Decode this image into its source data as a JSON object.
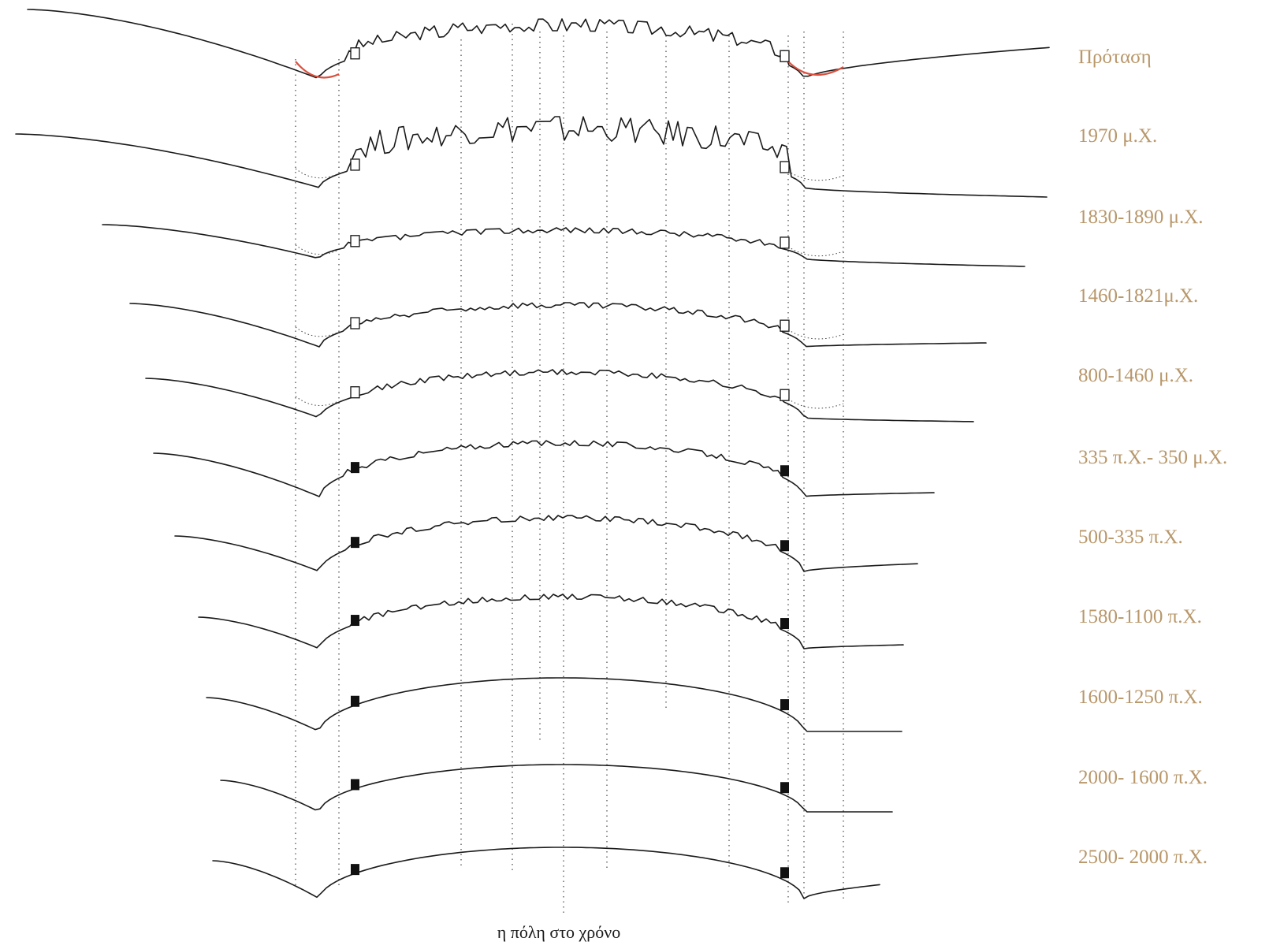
{
  "colors": {
    "label": "#b8976a",
    "highlight": "#d9503f",
    "ink": "#1a1a1a"
  },
  "periods": [
    {
      "label": "Πρόταση",
      "variant": "proposal"
    },
    {
      "label": "1970 μ.Χ.",
      "variant": "modern"
    },
    {
      "label": "1830-1890 μ.Χ.",
      "variant": "outline-gates"
    },
    {
      "label": "1460-1821μ.Χ.",
      "variant": "outline-gates"
    },
    {
      "label": "800-1460 μ.Χ.",
      "variant": "outline-gates"
    },
    {
      "label": "335 π.Χ.- 350 μ.Χ.",
      "variant": "filled-gates"
    },
    {
      "label": "500-335 π.Χ.",
      "variant": "filled-gates"
    },
    {
      "label": "1580-1100 π.Χ.",
      "variant": "filled-gates"
    },
    {
      "label": "1600-1250 π.Χ.",
      "variant": "filled-gates"
    },
    {
      "label": "2000- 1600 π.Χ.",
      "variant": "filled-gates"
    },
    {
      "label": "2500- 2000 π.Χ.",
      "variant": "filled-gates"
    }
  ],
  "caption": "η  πόλη στο χρόνο"
}
